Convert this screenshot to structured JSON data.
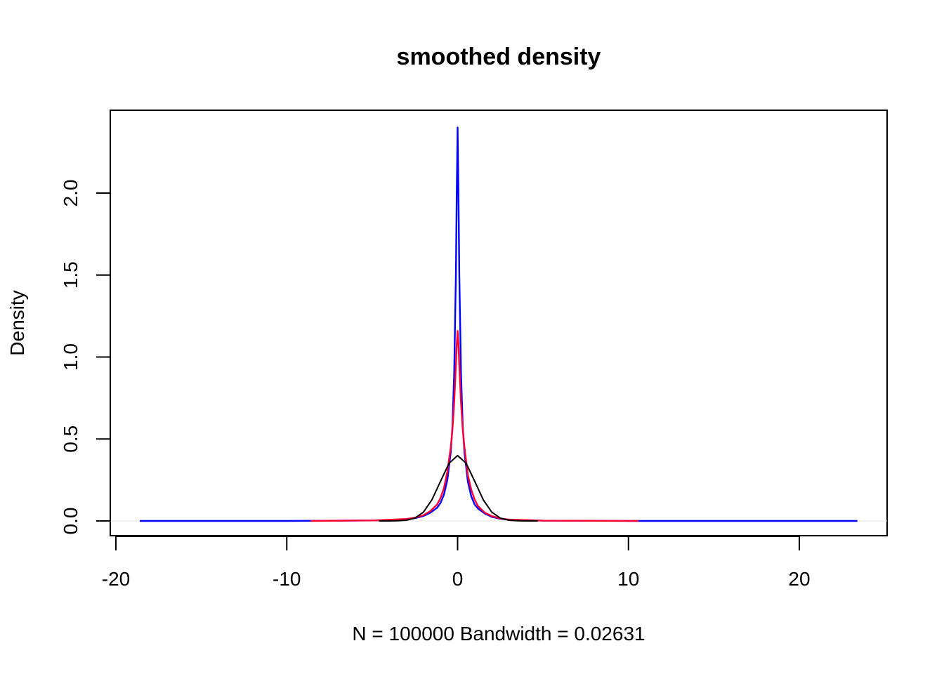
{
  "chart_data": {
    "type": "line",
    "title": "smoothed density",
    "xlabel": "N = 100000   Bandwidth = 0.02631",
    "ylabel": "Density",
    "xlim": [
      -20,
      25
    ],
    "ylim": [
      0,
      2.4
    ],
    "x_ticks": [
      -20,
      -10,
      0,
      10,
      20
    ],
    "x_tick_labels": [
      "-20",
      "-10",
      "0",
      "10",
      "20"
    ],
    "y_ticks": [
      0,
      0.5,
      1,
      1.5,
      2
    ],
    "y_tick_labels": [
      "0.0",
      "0.5",
      "1.0",
      "1.5",
      "2.0"
    ],
    "grid": false,
    "legend": "none",
    "colors": {
      "blue": "#0000ff",
      "red": "#ff0033",
      "black": "#000000"
    },
    "series": [
      {
        "color": "blue",
        "x": [
          -18.6,
          -10,
          -5,
          -3,
          -2.5,
          -2,
          -1.6,
          -1.2,
          -1.0,
          -0.8,
          -0.6,
          -0.4,
          -0.3,
          -0.2,
          -0.1,
          -0.05,
          0,
          0.05,
          0.1,
          0.2,
          0.3,
          0.4,
          0.6,
          0.8,
          1.0,
          1.2,
          1.6,
          2.0,
          2.5,
          3,
          5,
          10,
          23.4
        ],
        "y": [
          0,
          0,
          0.003,
          0.01,
          0.017,
          0.03,
          0.05,
          0.08,
          0.11,
          0.16,
          0.25,
          0.42,
          0.58,
          0.9,
          1.5,
          2.0,
          2.4,
          2.0,
          1.5,
          0.9,
          0.58,
          0.42,
          0.24,
          0.15,
          0.1,
          0.075,
          0.045,
          0.025,
          0.013,
          0.008,
          0.002,
          0,
          0
        ]
      },
      {
        "color": "red",
        "x": [
          -8.6,
          -5,
          -3,
          -2.5,
          -2,
          -1.6,
          -1.2,
          -1.0,
          -0.8,
          -0.6,
          -0.4,
          -0.3,
          -0.2,
          -0.1,
          -0.05,
          0,
          0.05,
          0.1,
          0.2,
          0.3,
          0.4,
          0.6,
          0.8,
          1.0,
          1.2,
          1.6,
          2.0,
          2.5,
          3,
          5,
          10.6
        ],
        "y": [
          0,
          0.003,
          0.012,
          0.02,
          0.035,
          0.06,
          0.1,
          0.14,
          0.2,
          0.3,
          0.45,
          0.56,
          0.72,
          0.95,
          1.08,
          1.16,
          1.08,
          0.95,
          0.72,
          0.56,
          0.45,
          0.28,
          0.19,
          0.13,
          0.09,
          0.05,
          0.03,
          0.015,
          0.008,
          0.002,
          0
        ]
      },
      {
        "color": "black",
        "x": [
          -4.6,
          -4,
          -3.5,
          -3,
          -2.5,
          -2,
          -1.5,
          -1.0,
          -0.5,
          0,
          0.5,
          1.0,
          1.5,
          2.0,
          2.5,
          3,
          3.5,
          4,
          4.7
        ],
        "y": [
          0,
          0.0001,
          0.0009,
          0.0044,
          0.0175,
          0.054,
          0.1295,
          0.242,
          0.352,
          0.399,
          0.352,
          0.242,
          0.1295,
          0.054,
          0.0175,
          0.0044,
          0.0009,
          0.0001,
          0
        ]
      }
    ]
  }
}
